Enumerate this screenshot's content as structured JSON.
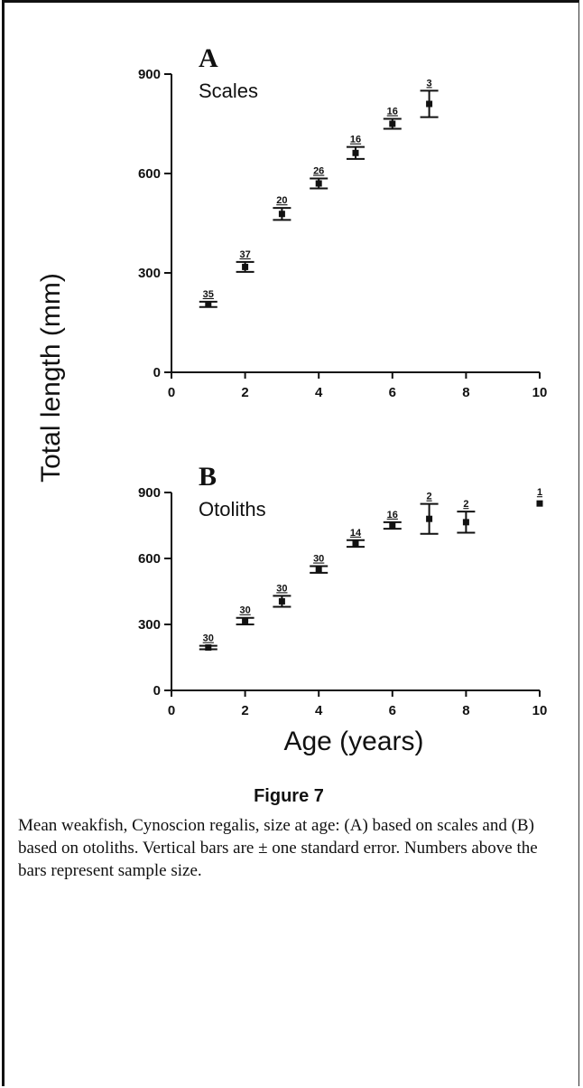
{
  "figure": {
    "title": "Figure 7",
    "caption": "Mean weakfish, Cynoscion regalis, size at age: (A) based on scales and (B) based on otoliths. Vertical bars are ± one standard error. Numbers above the bars represent sample size."
  },
  "shared_labels": {
    "ylabel": "Total length (mm)",
    "xlabel": "Age (years)"
  },
  "chart_data": [
    {
      "type": "scatter",
      "panel": "A",
      "title": "Scales",
      "xlim": [
        0,
        10
      ],
      "ylim": [
        0,
        900
      ],
      "x_ticks": [
        0,
        2,
        4,
        6,
        8,
        10
      ],
      "y_ticks": [
        0,
        300,
        600,
        900
      ],
      "points": [
        {
          "x": 1,
          "y": 205,
          "se": 8,
          "n": "35"
        },
        {
          "x": 2,
          "y": 318,
          "se": 15,
          "n": "37"
        },
        {
          "x": 3,
          "y": 478,
          "se": 18,
          "n": "20"
        },
        {
          "x": 4,
          "y": 570,
          "se": 15,
          "n": "26"
        },
        {
          "x": 5,
          "y": 662,
          "se": 18,
          "n": "16"
        },
        {
          "x": 6,
          "y": 750,
          "se": 15,
          "n": "16"
        },
        {
          "x": 7,
          "y": 810,
          "se": 40,
          "n": "3"
        }
      ]
    },
    {
      "type": "scatter",
      "panel": "B",
      "title": "Otoliths",
      "xlim": [
        0,
        10
      ],
      "ylim": [
        0,
        900
      ],
      "x_ticks": [
        0,
        2,
        4,
        6,
        8,
        10
      ],
      "y_ticks": [
        0,
        300,
        600,
        900
      ],
      "points": [
        {
          "x": 1,
          "y": 195,
          "se": 8,
          "n": "30"
        },
        {
          "x": 2,
          "y": 315,
          "se": 15,
          "n": "30"
        },
        {
          "x": 3,
          "y": 405,
          "se": 25,
          "n": "30"
        },
        {
          "x": 4,
          "y": 550,
          "se": 15,
          "n": "30"
        },
        {
          "x": 5,
          "y": 668,
          "se": 15,
          "n": "14"
        },
        {
          "x": 6,
          "y": 750,
          "se": 15,
          "n": "16"
        },
        {
          "x": 7,
          "y": 780,
          "se": 68,
          "n": "2"
        },
        {
          "x": 8,
          "y": 765,
          "se": 48,
          "n": "2"
        },
        {
          "x": 10,
          "y": 850,
          "se": 0,
          "n": "1"
        }
      ]
    }
  ]
}
